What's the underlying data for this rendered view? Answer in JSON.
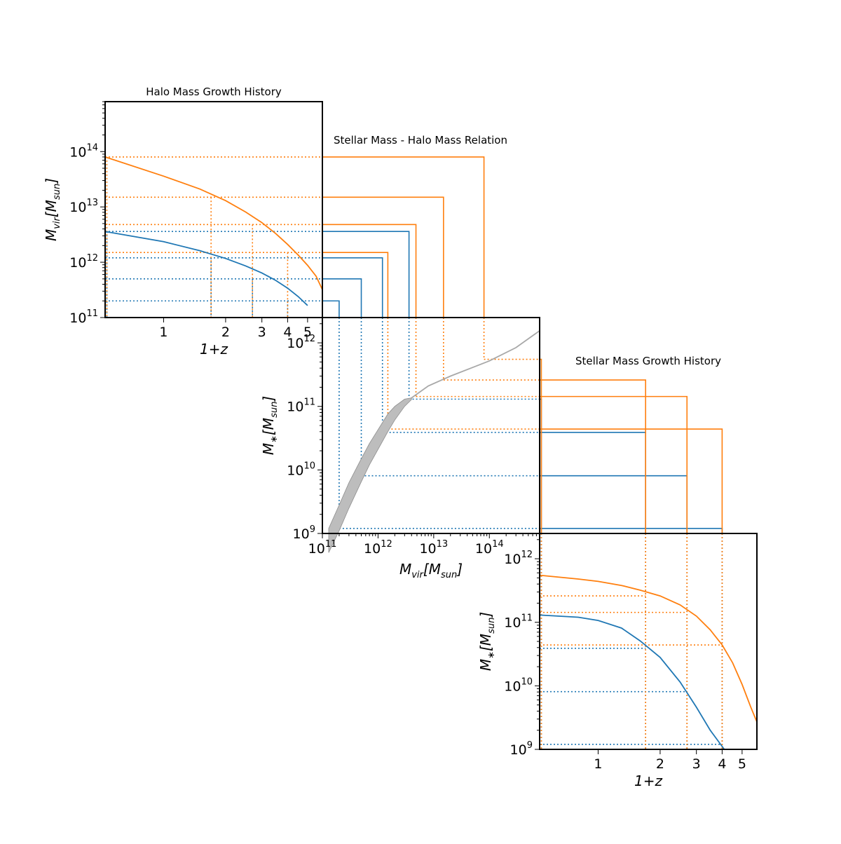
{
  "colors": {
    "blue": "#1f77b4",
    "orange": "#ff7f0e",
    "band": "#bdbdbd",
    "relation": "#a8a8a8",
    "axis": "#000000"
  },
  "chart_data": [
    {
      "id": "halo",
      "type": "line",
      "title": "Halo Mass Growth History",
      "xlabel": "1+z",
      "ylabel": "M_vir[M_sun]",
      "xscale": "log",
      "yscale": "log",
      "xlim": [
        0.52,
        5.9
      ],
      "ylim": [
        100000000000.0,
        800000000000000.0
      ],
      "xticks": [
        1,
        2,
        3,
        4,
        5
      ],
      "yticks": [
        {
          "value": 100000000000.0,
          "base": "10",
          "exp": "11"
        },
        {
          "value": 1000000000000.0,
          "base": "10",
          "exp": "12"
        },
        {
          "value": 10000000000000.0,
          "base": "10",
          "exp": "13"
        },
        {
          "value": 100000000000000.0,
          "base": "10",
          "exp": "14"
        }
      ],
      "series": [
        {
          "color": "blue",
          "x": [
            0.52,
            1.0,
            1.5,
            2.0,
            2.5,
            3.0,
            3.5,
            4.0,
            4.5,
            5.0
          ],
          "y": [
            3600000000000.0,
            2350000000000.0,
            1620000000000.0,
            1170000000000.0,
            860000000000.0,
            640000000000.0,
            470000000000.0,
            340000000000.0,
            240000000000.0,
            165000000000.0
          ]
        },
        {
          "color": "orange",
          "x": [
            0.52,
            1.0,
            1.5,
            2.0,
            2.5,
            3.0,
            3.5,
            4.0,
            4.5,
            5.0,
            5.5,
            5.9
          ],
          "y": [
            80000000000000.0,
            36000000000000.0,
            21000000000000.0,
            13000000000000.0,
            8100000000000.0,
            5200000000000.0,
            3300000000000.0,
            2100000000000.0,
            1350000000000.0,
            880000000000.0,
            560000000000.0,
            320000000000.0
          ]
        }
      ]
    },
    {
      "id": "smhm",
      "type": "area",
      "title": "Stellar Mass - Halo Mass Relation",
      "xlabel": "M_vir[M_sun]",
      "ylabel": "M_*[M_sun]",
      "xscale": "log",
      "yscale": "log",
      "xlim": [
        100000000000.0,
        800000000000000.0
      ],
      "ylim": [
        1000000000.0,
        2500000000000.0
      ],
      "xticks": [
        {
          "value": 100000000000.0,
          "base": "10",
          "exp": "11"
        },
        {
          "value": 1000000000000.0,
          "base": "10",
          "exp": "12"
        },
        {
          "value": 10000000000000.0,
          "base": "10",
          "exp": "13"
        },
        {
          "value": 100000000000000.0,
          "base": "10",
          "exp": "14"
        }
      ],
      "yticks": [
        {
          "value": 1000000000.0,
          "base": "10",
          "exp": "9"
        },
        {
          "value": 10000000000.0,
          "base": "10",
          "exp": "10"
        },
        {
          "value": 100000000000.0,
          "base": "10",
          "exp": "11"
        },
        {
          "value": 1000000000000.0,
          "base": "10",
          "exp": "12"
        }
      ],
      "band": {
        "x": [
          130000000000.0,
          200000000000.0,
          300000000000.0,
          500000000000.0,
          700000000000.0,
          1000000000000.0,
          1500000000000.0,
          2000000000000.0,
          3000000000000.0,
          4000000000000.0
        ],
        "lower": [
          500000000.0,
          1100000000.0,
          2500000000.0,
          6500000000.0,
          12000000000.0,
          21000000000.0,
          40000000000.0,
          61000000000.0,
          100000000000.0,
          128000000000.0
        ],
        "upper": [
          1200000000.0,
          2800000000.0,
          6300000000.0,
          15000000000.0,
          26000000000.0,
          43000000000.0,
          76000000000.0,
          100000000000.0,
          130000000000.0,
          136000000000.0
        ]
      },
      "relation": {
        "x": [
          4000000000000.0,
          8000000000000.0,
          20000000000000.0,
          50000000000000.0,
          100000000000000.0,
          300000000000000.0,
          800000000000000.0
        ],
        "y": [
          136000000000.0,
          210000000000.0,
          300000000000.0,
          410000000000.0,
          520000000000.0,
          840000000000.0,
          1550000000000.0
        ]
      },
      "links": [
        {
          "color": "blue",
          "mvir": 200000000000.0,
          "mstar": 1200000000.0,
          "zp1": 4.0
        },
        {
          "color": "blue",
          "mvir": 500000000000.0,
          "mstar": 8100000000.0,
          "zp1": 2.7
        },
        {
          "color": "blue",
          "mvir": 1200000000000.0,
          "mstar": 39000000000.0,
          "zp1": 1.7
        },
        {
          "color": "blue",
          "mvir": 3600000000000.0,
          "mstar": 130000000000.0,
          "zp1": 0.53
        },
        {
          "color": "orange",
          "mvir": 1500000000000.0,
          "mstar": 44000000000.0,
          "zp1": 4.0
        },
        {
          "color": "orange",
          "mvir": 4800000000000.0,
          "mstar": 143000000000.0,
          "zp1": 2.7
        },
        {
          "color": "orange",
          "mvir": 15000000000000.0,
          "mstar": 260000000000.0,
          "zp1": 1.7
        },
        {
          "color": "orange",
          "mvir": 80000000000000.0,
          "mstar": 550000000000.0,
          "zp1": 0.53
        }
      ]
    },
    {
      "id": "stellar",
      "type": "line",
      "title": "Stellar Mass Growth History",
      "xlabel": "1+z",
      "ylabel": "M_*[M_sun]",
      "xscale": "log",
      "yscale": "log",
      "xlim": [
        0.52,
        5.9
      ],
      "ylim": [
        1000000000.0,
        2500000000000.0
      ],
      "xticks": [
        1,
        2,
        3,
        4,
        5
      ],
      "yticks": [
        {
          "value": 1000000000.0,
          "base": "10",
          "exp": "9"
        },
        {
          "value": 10000000000.0,
          "base": "10",
          "exp": "10"
        },
        {
          "value": 100000000000.0,
          "base": "10",
          "exp": "11"
        },
        {
          "value": 1000000000000.0,
          "base": "10",
          "exp": "12"
        }
      ],
      "series": [
        {
          "color": "blue",
          "x": [
            0.52,
            0.8,
            1.0,
            1.3,
            1.6,
            2.0,
            2.5,
            3.0,
            3.5,
            4.1
          ],
          "y": [
            130000000000.0,
            120000000000.0,
            107000000000.0,
            81000000000.0,
            51000000000.0,
            28000000000.0,
            11500000000.0,
            4600000000.0,
            2000000000.0,
            1000000000.0
          ]
        },
        {
          "color": "orange",
          "x": [
            0.52,
            0.8,
            1.0,
            1.3,
            1.6,
            2.0,
            2.5,
            3.0,
            3.5,
            4.0,
            4.5,
            5.0,
            5.5,
            5.9
          ],
          "y": [
            550000000000.0,
            480000000000.0,
            440000000000.0,
            380000000000.0,
            320000000000.0,
            260000000000.0,
            188000000000.0,
            125000000000.0,
            76000000000.0,
            44000000000.0,
            23000000000.0,
            10500000000.0,
            4700000000.0,
            2700000000.0
          ]
        }
      ]
    }
  ]
}
